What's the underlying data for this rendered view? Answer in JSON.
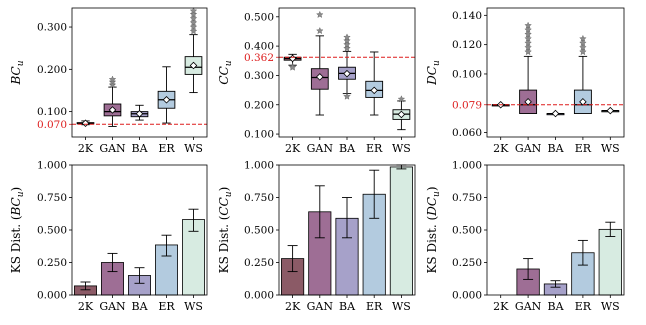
{
  "categories": [
    "2K",
    "GAN",
    "BA",
    "ER",
    "WS"
  ],
  "colors": {
    "2K": "#8b5a66",
    "GAN": "#9e6e95",
    "BA": "#a6a1c9",
    "ER": "#b3cbdf",
    "WS": "#d7ebe1",
    "reference": "#dd1c1c"
  },
  "chart_data": [
    {
      "type": "box",
      "ylabel": "BC_u",
      "ylim": [
        0.04,
        0.345
      ],
      "yticks": [
        "0.300",
        "0.200",
        "0.100",
        "0.070"
      ],
      "reference": {
        "value": 0.07,
        "label": "0.070"
      },
      "boxes": [
        {
          "category": "2K",
          "whisker_low": 0.069,
          "q1": 0.071,
          "median": 0.0725,
          "q3": 0.074,
          "whisker_high": 0.078,
          "mean": 0.0725
        },
        {
          "category": "GAN",
          "whisker_low": 0.065,
          "q1": 0.09,
          "median": 0.1,
          "q3": 0.118,
          "whisker_high": 0.158,
          "mean": 0.104,
          "outliers": [
            0.163,
            0.17,
            0.176
          ]
        },
        {
          "category": "BA",
          "whisker_low": 0.08,
          "q1": 0.088,
          "median": 0.095,
          "q3": 0.1,
          "whisker_high": 0.115,
          "mean": 0.095
        },
        {
          "category": "ER",
          "whisker_low": 0.073,
          "q1": 0.108,
          "median": 0.128,
          "q3": 0.148,
          "whisker_high": 0.206,
          "mean": 0.128
        },
        {
          "category": "WS",
          "whisker_low": 0.145,
          "q1": 0.188,
          "median": 0.205,
          "q3": 0.23,
          "whisker_high": 0.282,
          "mean": 0.209,
          "outliers": [
            0.29,
            0.3,
            0.31,
            0.32,
            0.33,
            0.338
          ]
        }
      ]
    },
    {
      "type": "box",
      "ylabel": "CC_u",
      "ylim": [
        0.09,
        0.53
      ],
      "yticks": [
        "0.500",
        "0.400",
        "0.362",
        "0.300",
        "0.200",
        "0.100"
      ],
      "reference": {
        "value": 0.362,
        "label": "0.362"
      },
      "boxes": [
        {
          "category": "2K",
          "whisker_low": 0.335,
          "q1": 0.352,
          "median": 0.358,
          "q3": 0.362,
          "whisker_high": 0.372,
          "mean": 0.358,
          "outliers": [
            0.33,
            0.327
          ]
        },
        {
          "category": "GAN",
          "whisker_low": 0.165,
          "q1": 0.253,
          "median": 0.293,
          "q3": 0.323,
          "whisker_high": 0.435,
          "mean": 0.295,
          "outliers": [
            0.452,
            0.507
          ]
        },
        {
          "category": "BA",
          "whisker_low": 0.238,
          "q1": 0.287,
          "median": 0.307,
          "q3": 0.328,
          "whisker_high": 0.382,
          "mean": 0.306,
          "outliers": [
            0.228,
            0.392,
            0.405,
            0.418,
            0.43
          ]
        },
        {
          "category": "ER",
          "whisker_low": 0.165,
          "q1": 0.225,
          "median": 0.249,
          "q3": 0.28,
          "whisker_high": 0.38,
          "mean": 0.249
        },
        {
          "category": "WS",
          "whisker_low": 0.115,
          "q1": 0.15,
          "median": 0.168,
          "q3": 0.183,
          "whisker_high": 0.213,
          "mean": 0.167,
          "outliers": [
            0.219
          ]
        }
      ]
    },
    {
      "type": "box",
      "ylabel": "DC_u",
      "ylim": [
        0.057,
        0.145
      ],
      "yticks": [
        "0.140",
        "0.120",
        "0.100",
        "0.079",
        "0.060"
      ],
      "reference": {
        "value": 0.079,
        "label": "0.079"
      },
      "boxes": [
        {
          "category": "2K",
          "whisker_low": 0.079,
          "q1": 0.079,
          "median": 0.079,
          "q3": 0.079,
          "whisker_high": 0.079,
          "mean": 0.079
        },
        {
          "category": "GAN",
          "whisker_low": 0.073,
          "q1": 0.073,
          "median": 0.079,
          "q3": 0.089,
          "whisker_high": 0.112,
          "mean": 0.081,
          "outliers": [
            0.115,
            0.118,
            0.121,
            0.124,
            0.127,
            0.13,
            0.133
          ]
        },
        {
          "category": "BA",
          "whisker_low": 0.073,
          "q1": 0.073,
          "median": 0.073,
          "q3": 0.073,
          "whisker_high": 0.073,
          "mean": 0.073
        },
        {
          "category": "ER",
          "whisker_low": 0.073,
          "q1": 0.073,
          "median": 0.079,
          "q3": 0.089,
          "whisker_high": 0.112,
          "mean": 0.081,
          "outliers": [
            0.115,
            0.118,
            0.121,
            0.124
          ]
        },
        {
          "category": "WS",
          "whisker_low": 0.075,
          "q1": 0.075,
          "median": 0.075,
          "q3": 0.075,
          "whisker_high": 0.075,
          "mean": 0.075
        }
      ]
    },
    {
      "type": "bar",
      "ylabel": "KS Dist. (BC_u)",
      "ylim": [
        0,
        1.0
      ],
      "yticks": [
        "1.000",
        "0.750",
        "0.500",
        "0.250",
        "0.000"
      ],
      "bars": [
        {
          "category": "2K",
          "value": 0.07,
          "err_low": 0.04,
          "err_high": 0.1
        },
        {
          "category": "GAN",
          "value": 0.25,
          "err_low": 0.18,
          "err_high": 0.32
        },
        {
          "category": "BA",
          "value": 0.15,
          "err_low": 0.09,
          "err_high": 0.21
        },
        {
          "category": "ER",
          "value": 0.385,
          "err_low": 0.3,
          "err_high": 0.46
        },
        {
          "category": "WS",
          "value": 0.58,
          "err_low": 0.49,
          "err_high": 0.66
        }
      ]
    },
    {
      "type": "bar",
      "ylabel": "KS Dist. (CC_u)",
      "ylim": [
        0,
        1.0
      ],
      "yticks": [
        "1.000",
        "0.750",
        "0.500",
        "0.250",
        "0.000"
      ],
      "bars": [
        {
          "category": "2K",
          "value": 0.28,
          "err_low": 0.18,
          "err_high": 0.38
        },
        {
          "category": "GAN",
          "value": 0.64,
          "err_low": 0.44,
          "err_high": 0.84
        },
        {
          "category": "BA",
          "value": 0.59,
          "err_low": 0.44,
          "err_high": 0.75
        },
        {
          "category": "ER",
          "value": 0.775,
          "err_low": 0.59,
          "err_high": 0.96
        },
        {
          "category": "WS",
          "value": 0.985,
          "err_low": 0.97,
          "err_high": 1.0
        }
      ]
    },
    {
      "type": "bar",
      "ylabel": "KS Dist. (DC_u)",
      "ylim": [
        0,
        1.0
      ],
      "yticks": [
        "1.000",
        "0.750",
        "0.500",
        "0.250",
        "0.000"
      ],
      "bars": [
        {
          "category": "2K",
          "value": 0.0,
          "err_low": 0.0,
          "err_high": 0.0
        },
        {
          "category": "GAN",
          "value": 0.2,
          "err_low": 0.12,
          "err_high": 0.28
        },
        {
          "category": "BA",
          "value": 0.085,
          "err_low": 0.06,
          "err_high": 0.11
        },
        {
          "category": "ER",
          "value": 0.325,
          "err_low": 0.23,
          "err_high": 0.42
        },
        {
          "category": "WS",
          "value": 0.505,
          "err_low": 0.45,
          "err_high": 0.56
        }
      ]
    }
  ]
}
